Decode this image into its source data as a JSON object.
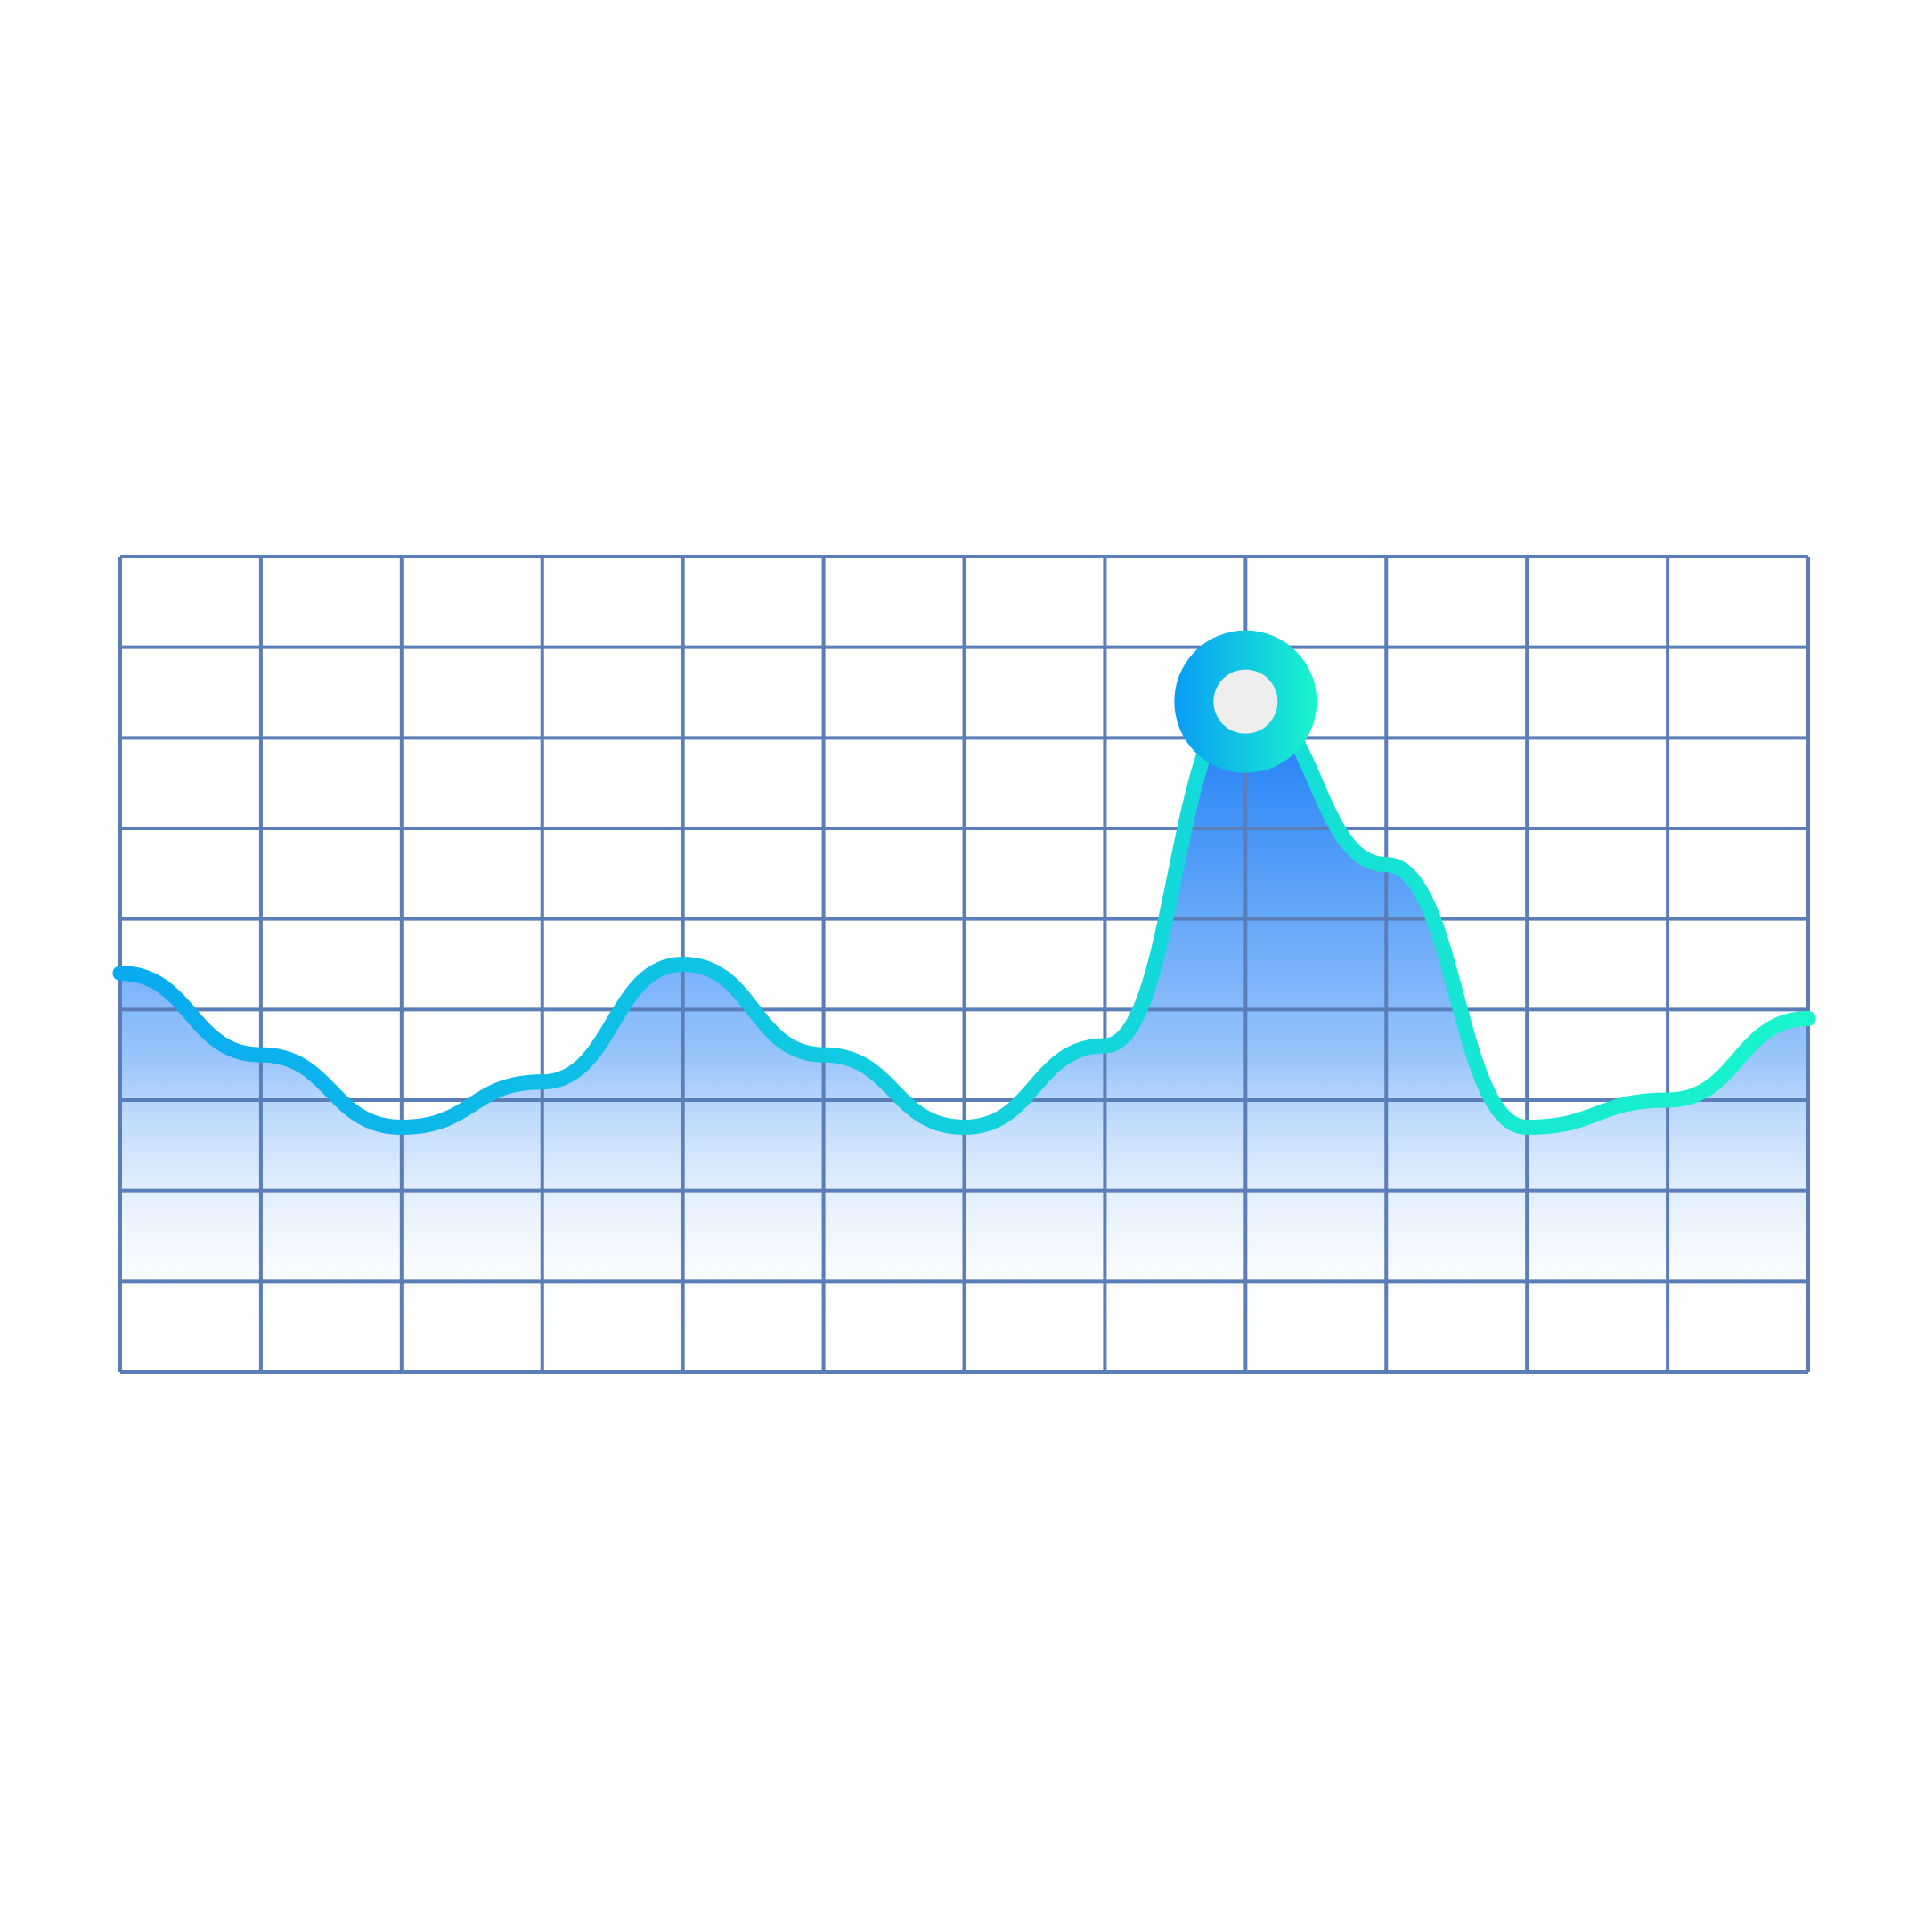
{
  "chart_data": {
    "type": "area",
    "title": "",
    "xlabel": "",
    "ylabel": "",
    "x": [
      0,
      1,
      2,
      3,
      4,
      5,
      6,
      7,
      8,
      9,
      10,
      11,
      12
    ],
    "series": [
      {
        "values": [
          4.4,
          3.5,
          2.7,
          3.2,
          4.5,
          3.5,
          2.7,
          3.6,
          7.4,
          5.6,
          2.7,
          3.0,
          3.9
        ]
      }
    ],
    "xlim": [
      0,
      12
    ],
    "ylim": [
      0,
      9
    ],
    "grid": true,
    "highlight": {
      "x": 8,
      "y": 7.4
    },
    "colors": {
      "grid": "#5b7db8",
      "line_start": "#0aaaf0",
      "line_end": "#19f5cc",
      "fill_top": "#1a7cf5",
      "fill_bottom": "#ffffff",
      "marker_inner": "#eeeeee"
    }
  }
}
